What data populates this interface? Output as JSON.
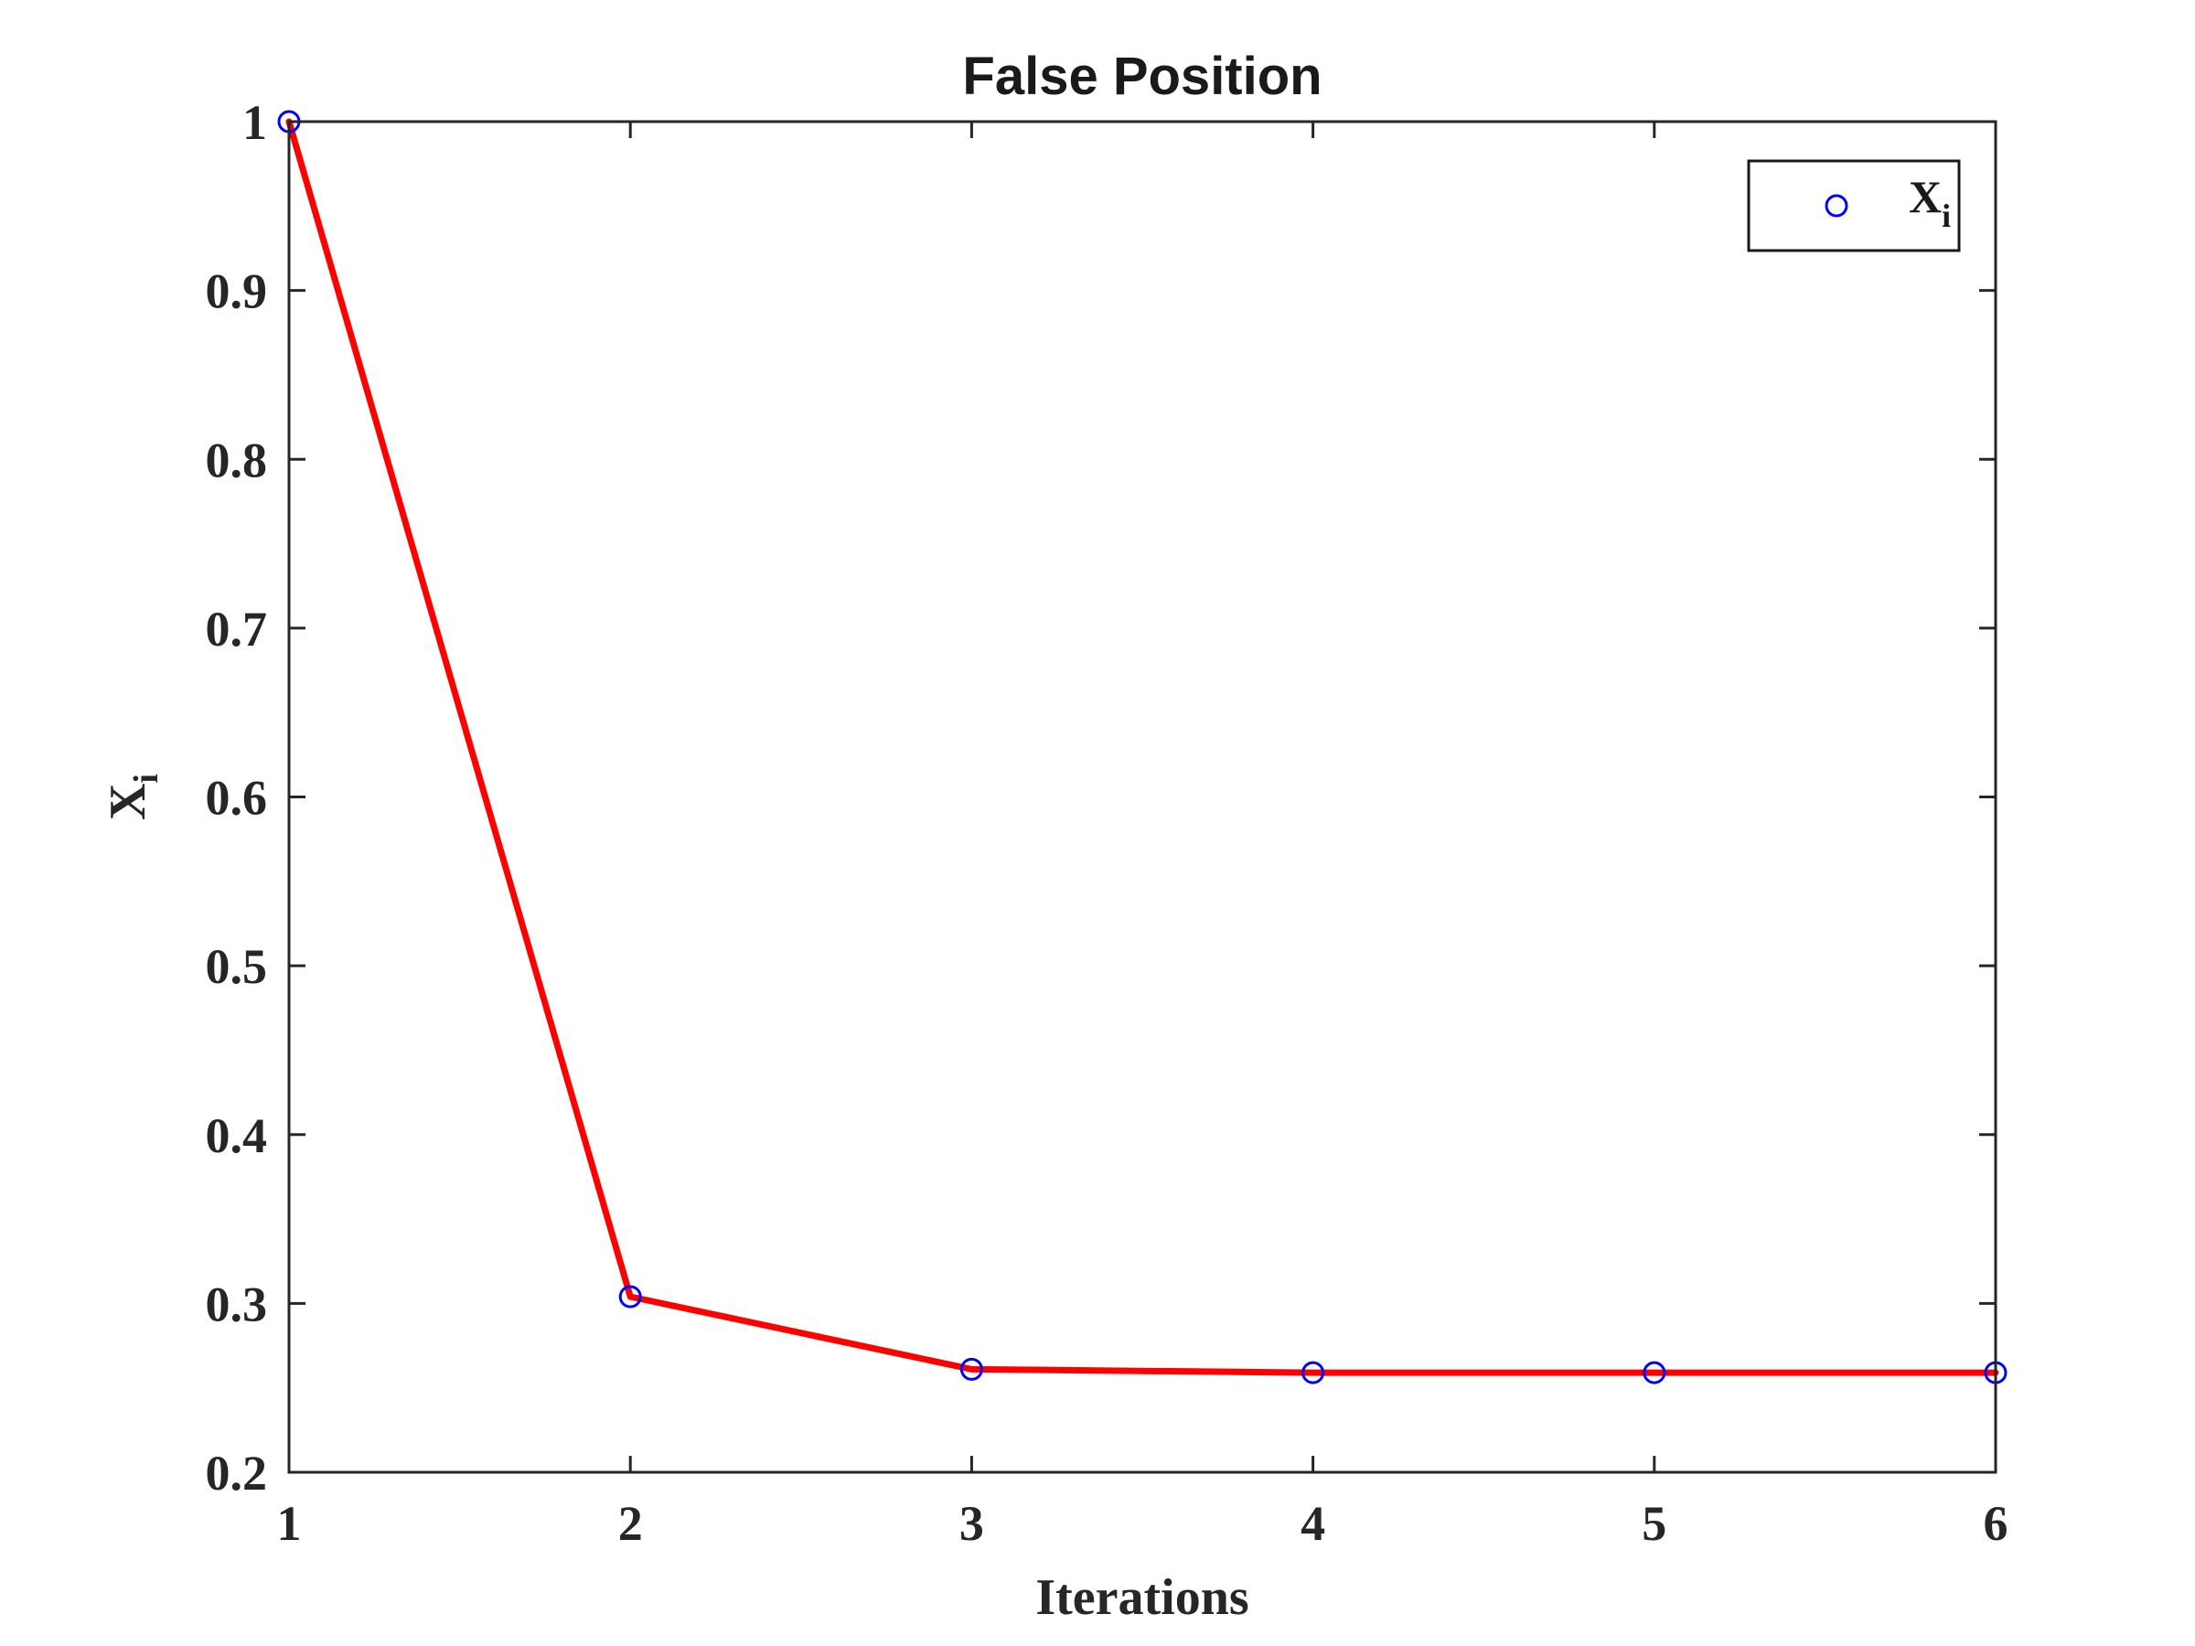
{
  "chart_data": {
    "type": "line",
    "title": "False Position",
    "xlabel": "Iterations",
    "ylabel": {
      "main": "X",
      "sub": "i"
    },
    "xlim": [
      1,
      6
    ],
    "ylim": [
      0.2,
      1
    ],
    "xticks": [
      1,
      2,
      3,
      4,
      5,
      6
    ],
    "yticks": [
      0.2,
      0.3,
      0.4,
      0.5,
      0.6,
      0.7,
      0.8,
      0.9,
      1
    ],
    "x_tick_labels": [
      "1",
      "2",
      "3",
      "4",
      "5",
      "6"
    ],
    "y_tick_labels": [
      "0.2",
      "0.3",
      "0.4",
      "0.5",
      "0.6",
      "0.7",
      "0.8",
      "0.9",
      "1"
    ],
    "grid": false,
    "legend_position": "top-right",
    "series": [
      {
        "name": {
          "main": "X",
          "sub": "i"
        },
        "x": [
          1,
          2,
          3,
          4,
          5,
          6
        ],
        "values": [
          1.0,
          0.304,
          0.261,
          0.259,
          0.259,
          0.259
        ],
        "line_color": "#ff0000",
        "marker": "circle",
        "marker_color": "#0000ff"
      }
    ]
  }
}
